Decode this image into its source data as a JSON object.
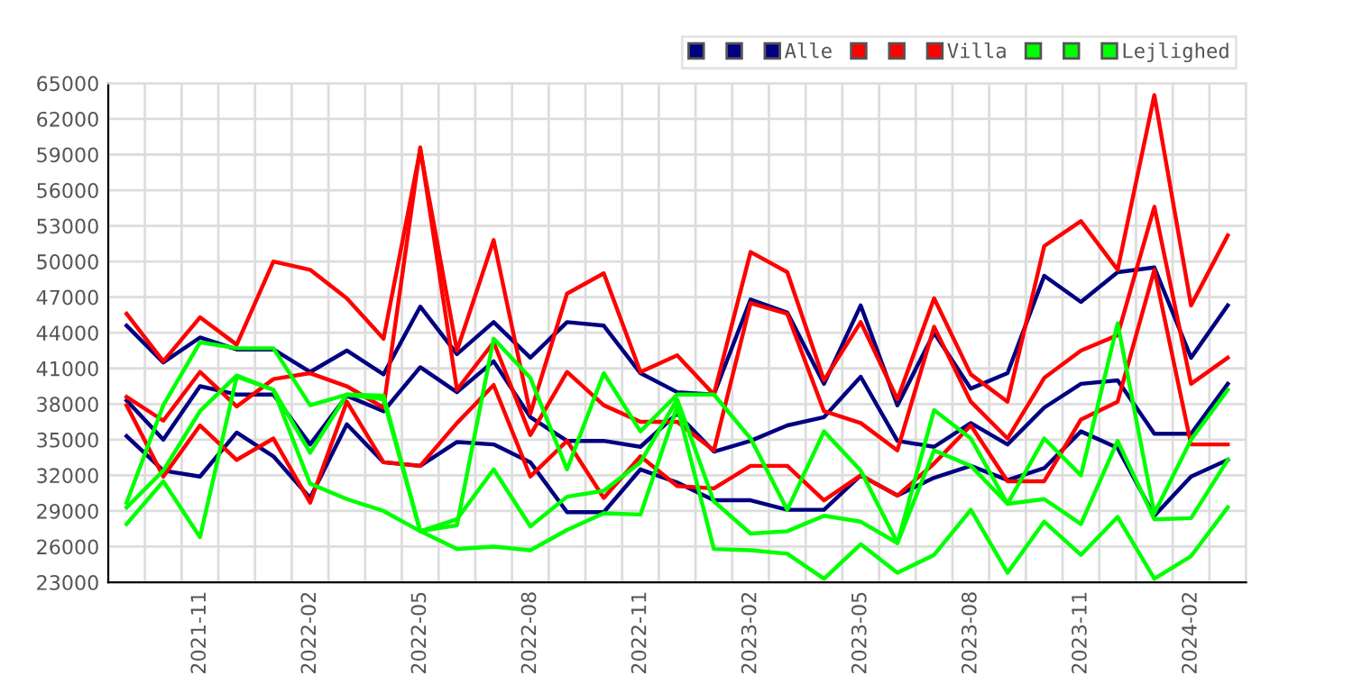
{
  "chart_data": {
    "type": "line",
    "categories": [
      null,
      null,
      "2021-11",
      null,
      null,
      "2022-02",
      null,
      null,
      "2022-05",
      null,
      null,
      "2022-08",
      null,
      null,
      "2022-11",
      null,
      null,
      "2023-02",
      null,
      null,
      "2023-05",
      null,
      null,
      "2023-08",
      null,
      null,
      "2023-11",
      null,
      null,
      "2024-02",
      null
    ],
    "series": [
      {
        "color": "#000080",
        "values": [
          44600,
          41500,
          43600,
          42600,
          42600,
          40700,
          42500,
          40500,
          46200,
          42200,
          44900,
          41900,
          44900,
          44600,
          40600,
          39000,
          38800,
          46800,
          45700,
          39700,
          46300,
          37900,
          44000,
          39300,
          40600,
          48800,
          46600,
          49100,
          49500,
          41900,
          46300
        ]
      },
      {
        "color": "#000080",
        "values": [
          38300,
          35000,
          39500,
          38800,
          38800,
          34600,
          38700,
          37400,
          41100,
          39000,
          41600,
          36900,
          34900,
          34900,
          34400,
          37200,
          34000,
          34900,
          36200,
          36900,
          40300,
          34900,
          34400,
          36400,
          34600,
          37700,
          39700,
          40000,
          35500,
          35500,
          39700
        ]
      },
      {
        "name": "Alle",
        "color": "#000080",
        "values": [
          35300,
          32400,
          31900,
          35600,
          33600,
          30100,
          36300,
          33100,
          32800,
          34800,
          34600,
          33100,
          28900,
          28900,
          32500,
          31400,
          29900,
          29900,
          29100,
          29100,
          32000,
          30300,
          31800,
          32800,
          31600,
          32600,
          35700,
          34300,
          28600,
          31900,
          33300
        ]
      },
      {
        "color": "#ff0000",
        "values": [
          45600,
          41600,
          45300,
          43000,
          50000,
          49300,
          46900,
          43500,
          59400,
          42500,
          51800,
          37200,
          47300,
          49000,
          40700,
          42100,
          38800,
          50800,
          49100,
          40000,
          44900,
          38400,
          46900,
          40500,
          38200,
          51300,
          53400,
          49300,
          64000,
          46300,
          52200
        ]
      },
      {
        "color": "#ff0000",
        "values": [
          38600,
          36600,
          40700,
          37800,
          40100,
          40600,
          39500,
          37700,
          59600,
          39200,
          43200,
          35400,
          40700,
          37900,
          36500,
          36500,
          34100,
          46500,
          45600,
          37400,
          36400,
          34100,
          44500,
          38200,
          35100,
          40200,
          42500,
          43800,
          54600,
          39700,
          41900
        ]
      },
      {
        "name": "Villa",
        "color": "#ff0000",
        "values": [
          37900,
          31900,
          36200,
          33300,
          35100,
          29700,
          38200,
          33100,
          32800,
          36400,
          39600,
          31900,
          34900,
          30100,
          33600,
          31100,
          30900,
          32800,
          32800,
          29900,
          32000,
          30300,
          33000,
          36200,
          31500,
          31500,
          36700,
          38200,
          49300,
          34600,
          34600
        ]
      },
      {
        "color": "#00ff00",
        "values": [
          29700,
          37900,
          43200,
          42700,
          42700,
          37900,
          38800,
          38700,
          27300,
          27800,
          43500,
          40200,
          32500,
          40600,
          35700,
          38800,
          38800,
          35100,
          29100,
          35700,
          32400,
          26300,
          37500,
          35100,
          29600,
          35100,
          32000,
          44800,
          28800,
          35000,
          39200
        ]
      },
      {
        "color": "#00ff00",
        "values": [
          29300,
          32400,
          37400,
          40400,
          39200,
          33900,
          38800,
          38400,
          27300,
          28300,
          32500,
          27700,
          30200,
          30700,
          33100,
          38400,
          29800,
          27100,
          27300,
          28600,
          28100,
          26300,
          34100,
          32800,
          29600,
          30000,
          27900,
          34900,
          28300,
          28400,
          33300
        ]
      },
      {
        "name": "Lejlighed",
        "color": "#00ff00",
        "values": [
          27900,
          31500,
          26800,
          40300,
          39200,
          31300,
          30000,
          29000,
          27300,
          25800,
          26000,
          25700,
          27400,
          28800,
          28700,
          37800,
          25800,
          25700,
          25400,
          23300,
          26200,
          23800,
          25300,
          29100,
          23800,
          28100,
          25300,
          28500,
          23300,
          25200,
          29300
        ]
      }
    ],
    "ylim": [
      23000,
      65000
    ],
    "yticks": [
      23000,
      26000,
      29000,
      32000,
      35000,
      38000,
      41000,
      44000,
      47000,
      50000,
      53000,
      56000,
      59000,
      62000,
      65000
    ],
    "grid": true,
    "legend": "top right",
    "marker": "none",
    "line_style": "solid"
  }
}
